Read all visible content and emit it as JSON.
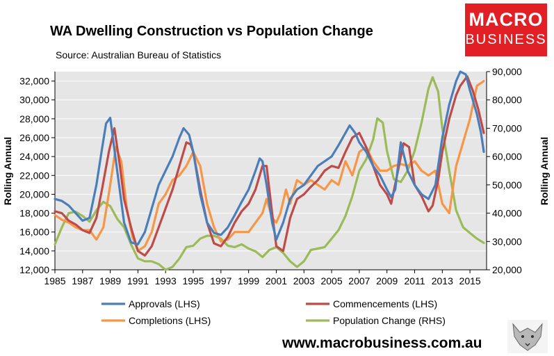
{
  "header": {
    "title": "WA Dwelling Construction vs Population Change",
    "source": "Source: Australian Bureau of Statistics"
  },
  "logo": {
    "line1": "MACRO",
    "line2": "BUSINESS",
    "color": "#e31f26"
  },
  "footer": {
    "url": "www.macrobusiness.com.au"
  },
  "chart_data": {
    "type": "line",
    "title": "WA Dwelling Construction vs Population Change",
    "xlabel": "",
    "ylabel_left": "Rolling Annual",
    "ylabel_right": "Rolling Annual",
    "x_range": [
      1985,
      2016.2
    ],
    "x_ticks": [
      "1985",
      "1987",
      "1989",
      "1991",
      "1993",
      "1995",
      "1997",
      "1999",
      "2001",
      "2003",
      "2005",
      "2007",
      "2009",
      "2011",
      "2013",
      "2015"
    ],
    "ylim_left": [
      12000,
      33000
    ],
    "y_ticks_left": [
      "12,000",
      "14,000",
      "16,000",
      "18,000",
      "20,000",
      "22,000",
      "24,000",
      "26,000",
      "28,000",
      "30,000",
      "32,000"
    ],
    "ylim_right": [
      20000,
      90000
    ],
    "y_ticks_right": [
      "20,000",
      "30,000",
      "40,000",
      "50,000",
      "60,000",
      "70,000",
      "80,000",
      "90,000"
    ],
    "series": [
      {
        "name": "Approvals (LHS)",
        "axis": "left",
        "color": "#4a7ebb",
        "x": [
          1985,
          1985.5,
          1986,
          1986.5,
          1987,
          1987.5,
          1988,
          1988.4,
          1988.7,
          1989,
          1989.5,
          1990,
          1990.5,
          1991,
          1991.5,
          1992,
          1992.5,
          1993,
          1993.5,
          1994,
          1994.3,
          1994.7,
          1995,
          1995.5,
          1996,
          1996.5,
          1997,
          1997.5,
          1998,
          1998.5,
          1999,
          1999.5,
          1999.8,
          2000,
          2000.3,
          2000.7,
          2001,
          2001.5,
          2002,
          2002.5,
          2003,
          2003.5,
          2004,
          2004.5,
          2005,
          2005.5,
          2006,
          2006.3,
          2006.7,
          2007,
          2007.5,
          2008,
          2008.5,
          2009,
          2009.3,
          2009.6,
          2010,
          2010.5,
          2011,
          2011.5,
          2012,
          2012.5,
          2013,
          2013.5,
          2014,
          2014.3,
          2014.7,
          2015,
          2015.5,
          2015.8,
          2016
        ],
        "y": [
          19500,
          19300,
          18800,
          18000,
          17200,
          17500,
          21000,
          24800,
          27500,
          28100,
          22500,
          17000,
          14900,
          14700,
          16000,
          18500,
          21000,
          22500,
          24000,
          26000,
          27000,
          26300,
          24500,
          20000,
          17000,
          15900,
          15700,
          16500,
          17800,
          19200,
          20500,
          22500,
          23800,
          23500,
          21000,
          17000,
          15200,
          17000,
          19500,
          20500,
          21000,
          22000,
          23000,
          23500,
          24000,
          25200,
          26500,
          27300,
          26500,
          25500,
          24500,
          23000,
          22000,
          20500,
          19700,
          20500,
          25500,
          22500,
          21000,
          20000,
          19500,
          21000,
          26000,
          29500,
          32000,
          33000,
          32700,
          31000,
          28500,
          26500,
          24500
        ]
      },
      {
        "name": "Commencements (LHS)",
        "axis": "left",
        "color": "#be4b48",
        "x": [
          1985,
          1985.5,
          1986,
          1986.5,
          1987,
          1987.5,
          1988,
          1988.4,
          1988.9,
          1989.3,
          1989.7,
          1990,
          1990.5,
          1991,
          1991.5,
          1992,
          1992.5,
          1993,
          1993.5,
          1994,
          1994.5,
          1994.8,
          1995,
          1995.5,
          1996,
          1996.5,
          1997,
          1997.5,
          1998,
          1998.5,
          1999,
          1999.5,
          2000,
          2000.3,
          2000.7,
          2001,
          2001.5,
          2002,
          2002.5,
          2003,
          2003.5,
          2004,
          2004.5,
          2005,
          2005.5,
          2006,
          2006.5,
          2007,
          2007.5,
          2008,
          2008.5,
          2009,
          2009.3,
          2009.8,
          2010.2,
          2010.6,
          2011,
          2011.5,
          2012,
          2012.3,
          2012.7,
          2013,
          2013.5,
          2014,
          2014.3,
          2014.8,
          2015.2,
          2015.6,
          2016
        ],
        "y": [
          18200,
          18000,
          17200,
          16800,
          16200,
          15900,
          17500,
          20500,
          24500,
          27000,
          23000,
          19500,
          16500,
          14000,
          13500,
          14500,
          16500,
          18500,
          20500,
          23000,
          25500,
          25300,
          24500,
          20500,
          17000,
          14800,
          14500,
          15500,
          17000,
          18200,
          19000,
          20500,
          23000,
          23000,
          18000,
          14500,
          14000,
          17500,
          19500,
          20000,
          20800,
          21500,
          22500,
          23000,
          22800,
          24500,
          26000,
          26500,
          25000,
          23000,
          21000,
          20000,
          19000,
          22500,
          25400,
          25000,
          21000,
          19800,
          18200,
          18800,
          21500,
          24500,
          28000,
          30500,
          31500,
          32500,
          31000,
          29000,
          26500
        ]
      },
      {
        "name": "Completions (LHS)",
        "axis": "left",
        "color": "#f79646",
        "x": [
          1985,
          1985.5,
          1986,
          1986.5,
          1987,
          1987.5,
          1988,
          1988.5,
          1989,
          1989.4,
          1989.8,
          1990.2,
          1990.6,
          1991,
          1991.5,
          1992,
          1992.5,
          1993,
          1993.5,
          1994,
          1994.5,
          1995,
          1995.5,
          1996,
          1996.5,
          1997,
          1997.5,
          1998,
          1998.5,
          1999,
          1999.5,
          2000,
          2000.3,
          2000.7,
          2001,
          2001.3,
          2001.7,
          2002,
          2002.5,
          2003,
          2003.5,
          2004,
          2004.5,
          2005,
          2005.5,
          2006,
          2006.5,
          2007,
          2007.5,
          2008,
          2008.5,
          2009,
          2009.5,
          2010,
          2010.5,
          2011,
          2011.5,
          2012,
          2012.5,
          2013,
          2013.5,
          2014,
          2014.5,
          2015,
          2015.5,
          2016
        ],
        "y": [
          17800,
          17300,
          17000,
          16500,
          16200,
          16200,
          15200,
          16500,
          21000,
          25000,
          23500,
          18500,
          15500,
          14000,
          14500,
          16000,
          19000,
          20000,
          21500,
          22000,
          23000,
          24500,
          23000,
          19000,
          16500,
          15000,
          15200,
          16000,
          16000,
          16000,
          17000,
          18000,
          19500,
          17500,
          17000,
          18000,
          20500,
          19000,
          21500,
          21000,
          21500,
          21000,
          20500,
          21500,
          21000,
          23500,
          22000,
          24500,
          25000,
          23500,
          22500,
          22500,
          23000,
          23200,
          23000,
          23500,
          22500,
          22000,
          22500,
          19000,
          18000,
          23000,
          25500,
          28000,
          31500,
          32000
        ]
      },
      {
        "name": "Population Change (RHS)",
        "axis": "right",
        "color": "#9bbb59",
        "x": [
          1985,
          1985.5,
          1986,
          1986.5,
          1987,
          1987.5,
          1988,
          1988.5,
          1989,
          1989.5,
          1990,
          1990.5,
          1991,
          1991.5,
          1992,
          1992.5,
          1993,
          1993.5,
          1994,
          1994.5,
          1995,
          1995.5,
          1996,
          1996.5,
          1997,
          1997.5,
          1998,
          1998.5,
          1999,
          1999.5,
          2000,
          2000.5,
          2001,
          2001.5,
          2002,
          2002.5,
          2003,
          2003.5,
          2004,
          2004.5,
          2005,
          2005.5,
          2006,
          2006.5,
          2007,
          2007.5,
          2008,
          2008.3,
          2008.7,
          2009,
          2009.5,
          2010,
          2010.5,
          2011,
          2011.5,
          2012,
          2012.3,
          2012.7,
          2013,
          2013.5,
          2014,
          2014.5,
          2015,
          2015.5,
          2016
        ],
        "y": [
          29000,
          35000,
          40000,
          40500,
          39000,
          37000,
          41000,
          44000,
          42500,
          38000,
          35000,
          29000,
          24000,
          23000,
          23000,
          22000,
          20000,
          21000,
          24000,
          28000,
          28500,
          31000,
          32000,
          32000,
          31000,
          28500,
          28000,
          29000,
          27500,
          26500,
          24500,
          27000,
          28000,
          26000,
          23000,
          21000,
          23000,
          27000,
          27500,
          28000,
          31000,
          34000,
          39000,
          46000,
          55000,
          59000,
          66000,
          73500,
          72000,
          62000,
          52000,
          51000,
          55000,
          62000,
          72000,
          84000,
          88000,
          83000,
          70000,
          55000,
          41000,
          35000,
          33000,
          31000,
          29500
        ]
      }
    ],
    "legend": [
      "Approvals (LHS)",
      "Commencements (LHS)",
      "Completions (LHS)",
      "Population Change (RHS)"
    ],
    "legend_position": "bottom"
  }
}
